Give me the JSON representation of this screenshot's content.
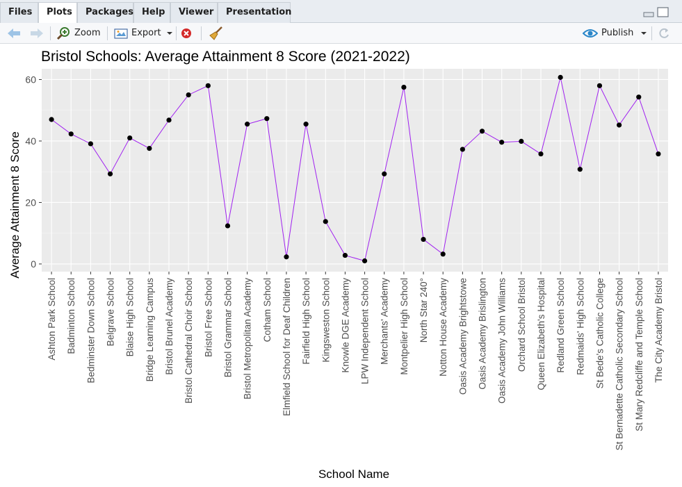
{
  "tabs": [
    "Files",
    "Plots",
    "Packages",
    "Help",
    "Viewer",
    "Presentation"
  ],
  "active_tab": "Plots",
  "toolbar": {
    "zoom_label": "Zoom",
    "export_label": "Export",
    "publish_label": "Publish"
  },
  "chart_data": {
    "type": "line",
    "title": "Bristol Schools: Average Attainment 8 Score (2021-2022)",
    "xlabel": "School Name",
    "ylabel": "Average Attainment 8 Score",
    "ylim": [
      -2.5,
      63.5
    ],
    "yticks": [
      0,
      20,
      40,
      60
    ],
    "grid": true,
    "line_color": "#a020f0",
    "point_color": "#000000",
    "panel_background": "#ebebeb",
    "categories": [
      "Ashton Park School",
      "Badminton School",
      "Bedminster Down School",
      "Belgrave School",
      "Blaise High School",
      "Bridge Learning Campus",
      "Bristol Brunel Academy",
      "Bristol Cathedral Choir School",
      "Bristol Free School",
      "Bristol Grammar School",
      "Bristol Metropolitan Academy",
      "Cotham School",
      "Elmfield School for Deaf Children",
      "Fairfield High School",
      "Kingsweston School",
      "Knowle DGE Academy",
      "LPW Independent School",
      "Merchants' Academy",
      "Montpelier High School",
      "North Star 240°",
      "Notton House Academy",
      "Oasis Academy Brightstowe",
      "Oasis Academy Brislington",
      "Oasis Academy John Williams",
      "Orchard School Bristol",
      "Queen Elizabeth's Hospital",
      "Redland Green School",
      "Redmaids' High School",
      "St Bede's Catholic College",
      "St Bernadette Catholic Secondary School",
      "St Mary Redcliffe and Temple School",
      "The City Academy Bristol"
    ],
    "values": [
      47.0,
      42.3,
      39.1,
      29.3,
      41.0,
      37.6,
      46.8,
      55.0,
      58.0,
      12.4,
      45.5,
      47.3,
      2.3,
      45.5,
      13.8,
      2.8,
      1.0,
      29.3,
      57.5,
      8.0,
      3.2,
      37.3,
      43.2,
      39.6,
      39.9,
      35.8,
      60.7,
      30.8,
      58.0,
      45.2,
      54.3,
      35.8
    ]
  }
}
